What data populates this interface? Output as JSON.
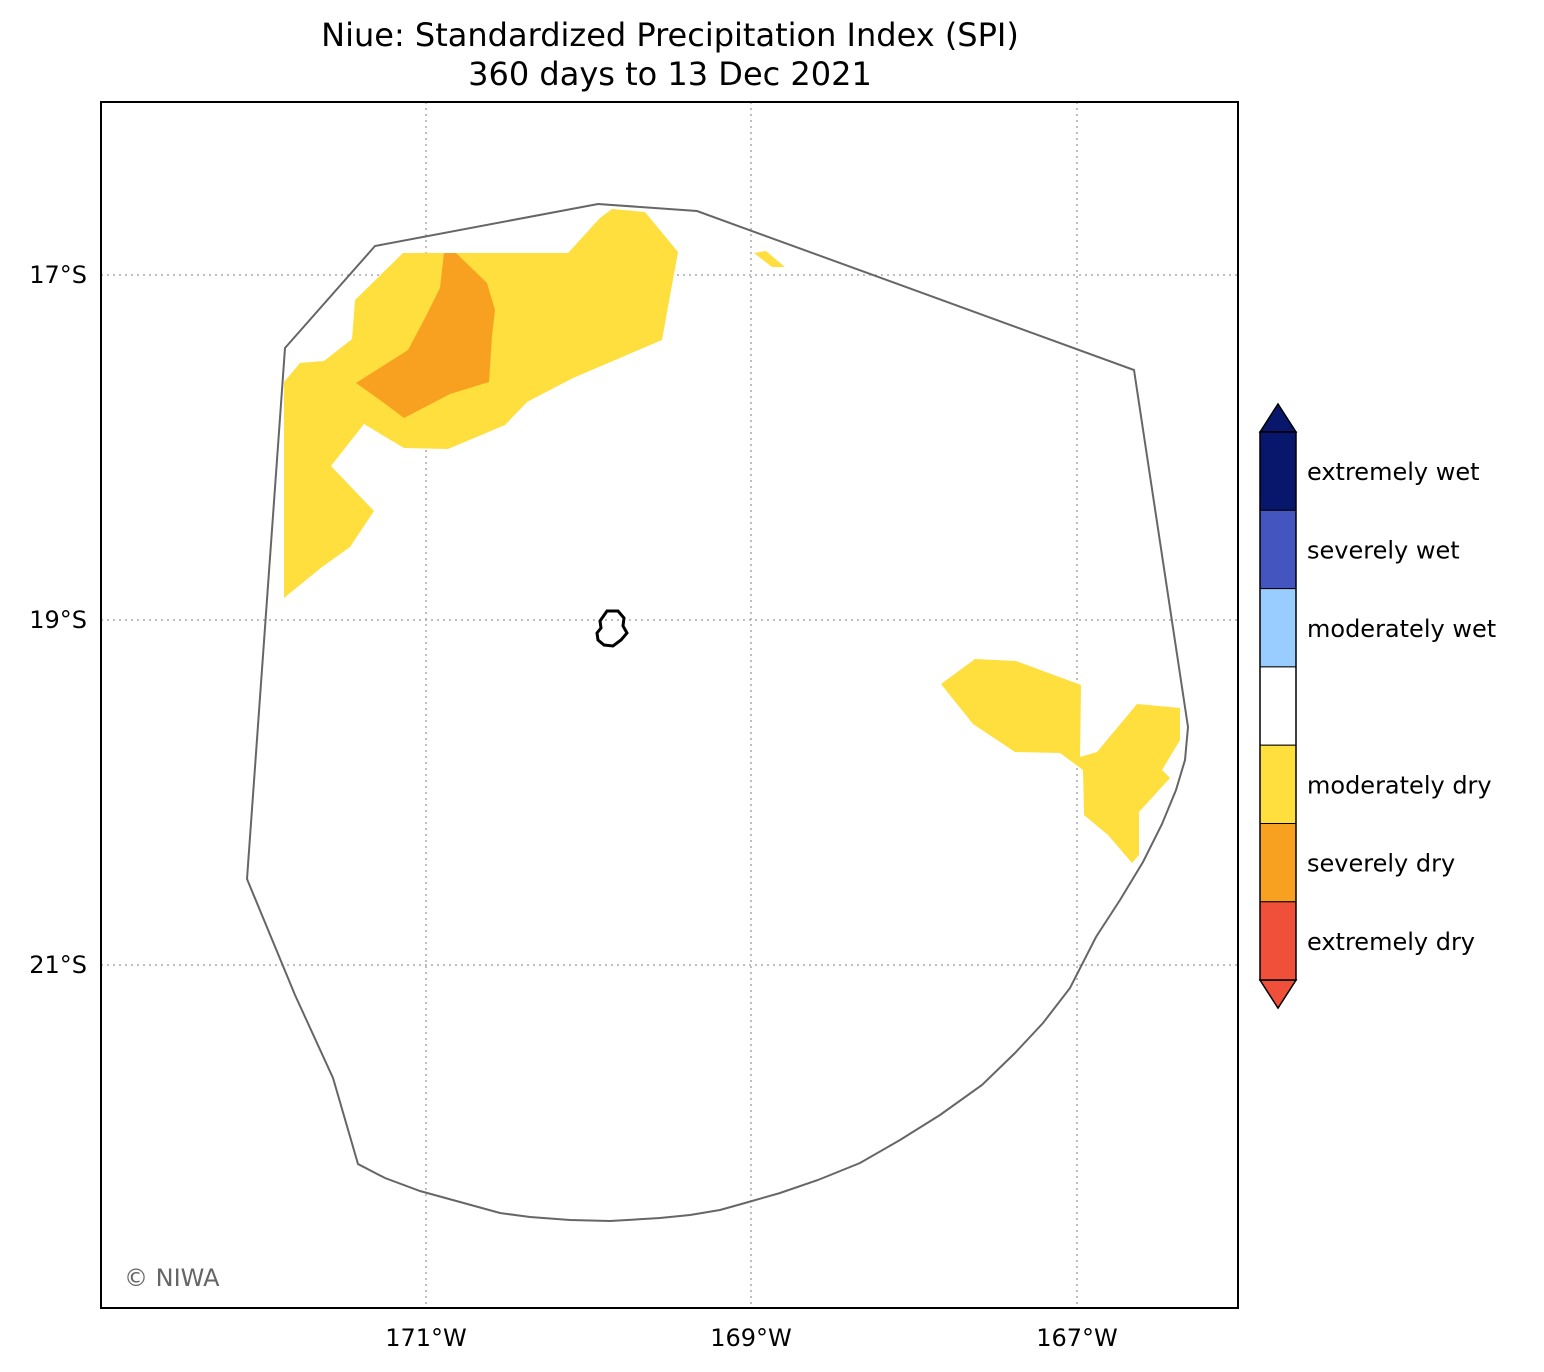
{
  "map": {
    "title": "Niue: Standardized Precipitation Index (SPI)",
    "subtitle": "360 days to 13 Dec 2021",
    "lon_ticks": [
      "171°W",
      "169°W",
      "167°W"
    ],
    "lat_ticks": [
      "17°S",
      "19°S",
      "21°S"
    ],
    "credit": "© NIWA",
    "grid": true,
    "colors": {
      "extremely_wet": "#08176b",
      "severely_wet": "#4555c0",
      "moderately_wet": "#99ccff",
      "normal": "#ffffff",
      "moderately_dry": "#fedf3e",
      "severely_dry": "#f8a020",
      "extremely_dry": "#f0503a",
      "eez_outline": "#666666"
    }
  },
  "legend": {
    "placement": "right",
    "items": [
      {
        "label": "extremely wet",
        "color": "#08176b"
      },
      {
        "label": "severely wet",
        "color": "#4555c0"
      },
      {
        "label": "moderately wet",
        "color": "#99ccff"
      },
      {
        "label": "",
        "color": "#ffffff"
      },
      {
        "label": "moderately dry",
        "color": "#fedf3e"
      },
      {
        "label": "severely dry",
        "color": "#f8a020"
      },
      {
        "label": "extremely dry",
        "color": "#f0503a"
      }
    ]
  }
}
